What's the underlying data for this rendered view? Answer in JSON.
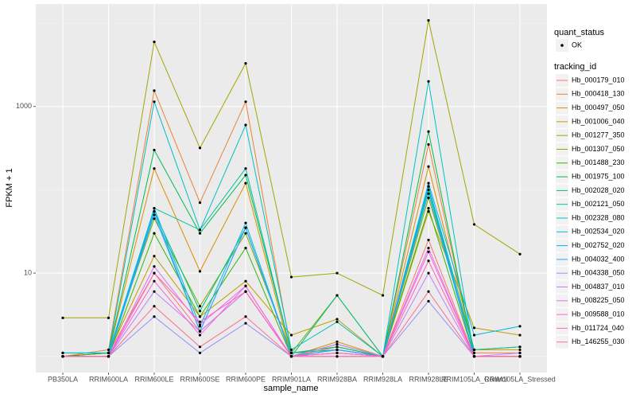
{
  "chart_data": {
    "type": "line",
    "x_label": "sample_name",
    "y_label": "FPKM + 1",
    "y_scale": "log",
    "grid": true,
    "legend_position": "right",
    "point_color": "#000000",
    "shape_legend_title": "quant_status",
    "shape_legend_items": [
      "OK"
    ],
    "color_legend_title": "tracking_id",
    "categories": [
      "PB350LA",
      "RRIM600LA",
      "RRIM600LE",
      "RRIM600SE",
      "RRIM600PE",
      "RRIM901LA",
      "RRIM928BA",
      "RRIM928LA",
      "RRIM928LE",
      "RRIM105LA_Control",
      "RRIM105LA_Stressed"
    ],
    "ylim": [
      0.64,
      17000
    ],
    "yticks": [
      10,
      1000
    ],
    "series": [
      {
        "name": "Hb_000179_010",
        "color": "#F8766D",
        "values": [
          1.0,
          1.1,
          10,
          2,
          6,
          1.0,
          1.3,
          1.0,
          25,
          1.0,
          1.0
        ]
      },
      {
        "name": "Hb_000418_130",
        "color": "#EA8331",
        "values": [
          1.0,
          1.2,
          1550,
          70,
          1140,
          1.1,
          1.2,
          1.0,
          350,
          1.1,
          1.1
        ]
      },
      {
        "name": "Hb_000497_050",
        "color": "#D89000",
        "values": [
          1.0,
          1.1,
          180,
          10.5,
          120,
          1.0,
          1.5,
          1.0,
          190,
          1.2,
          1.2
        ]
      },
      {
        "name": "Hb_001006_040",
        "color": "#C09B00",
        "values": [
          1.0,
          1.1,
          16,
          3,
          8,
          1.8,
          2.8,
          1.0,
          55,
          2.2,
          1.8
        ]
      },
      {
        "name": "Hb_001277_350",
        "color": "#A3A500",
        "values": [
          2.9,
          2.9,
          5960,
          318,
          3290,
          8.96,
          10,
          5.4,
          10800,
          38.4,
          16.9
        ]
      },
      {
        "name": "Hb_001307_050",
        "color": "#7CAE00",
        "values": [
          1.0,
          1.1,
          45,
          4,
          30,
          1.1,
          5.4,
          1.0,
          80,
          1.2,
          1.3
        ]
      },
      {
        "name": "Hb_001488_230",
        "color": "#39B600",
        "values": [
          1.0,
          1.0,
          30,
          3,
          20,
          1.0,
          1.2,
          1.0,
          60,
          1.0,
          1.0
        ]
      },
      {
        "name": "Hb_001975_100",
        "color": "#00BB4E",
        "values": [
          1.0,
          1.1,
          300,
          30,
          150,
          1.1,
          1.3,
          1.0,
          500,
          1.0,
          1.0
        ]
      },
      {
        "name": "Hb_002028_020",
        "color": "#00BF7D",
        "values": [
          1.0,
          1.0,
          55,
          3.5,
          35,
          1.0,
          5.4,
          1.0,
          100,
          1.0,
          1.0
        ]
      },
      {
        "name": "Hb_002121_050",
        "color": "#00C1A3",
        "values": [
          1.0,
          1.0,
          60,
          33,
          180,
          1.1,
          1.2,
          1.0,
          110,
          1.2,
          1.3
        ]
      },
      {
        "name": "Hb_002328_080",
        "color": "#00BFC4",
        "values": [
          1.1,
          1.1,
          1140,
          33,
          600,
          1.2,
          2.6,
          1.0,
          2000,
          1.0,
          1.0
        ]
      },
      {
        "name": "Hb_002534_020",
        "color": "#00BAE0",
        "values": [
          1.1,
          1.1,
          60,
          2.3,
          40,
          1.0,
          1.4,
          1.0,
          120,
          1.8,
          2.3
        ]
      },
      {
        "name": "Hb_002752_020",
        "color": "#00B0F6",
        "values": [
          1.0,
          1.0,
          55,
          2,
          35,
          1.0,
          1.2,
          1.0,
          110,
          1.0,
          1.0
        ]
      },
      {
        "name": "Hb_004032_400",
        "color": "#35A2FF",
        "values": [
          1.0,
          1.0,
          50,
          2,
          35,
          1.0,
          1.2,
          1.0,
          90,
          1.0,
          1.0
        ]
      },
      {
        "name": "Hb_004338_050",
        "color": "#9590FF",
        "values": [
          1.0,
          1.0,
          3,
          1.1,
          2.5,
          1.0,
          1.1,
          1.0,
          4.6,
          1.0,
          1.0
        ]
      },
      {
        "name": "Hb_004837_010",
        "color": "#C77CFF",
        "values": [
          1.0,
          1.0,
          6,
          2,
          6,
          1.0,
          1.4,
          1.0,
          10,
          1.0,
          1.1
        ]
      },
      {
        "name": "Hb_008225_050",
        "color": "#E76BF3",
        "values": [
          1.0,
          1.0,
          12,
          2.4,
          7,
          1.0,
          1.1,
          1.0,
          20,
          1.0,
          1.0
        ]
      },
      {
        "name": "Hb_009588_010",
        "color": "#FA62DB",
        "values": [
          1.0,
          1.0,
          8,
          1.8,
          7,
          1.0,
          1.0,
          1.0,
          18,
          1.0,
          1.0
        ]
      },
      {
        "name": "Hb_011724_040",
        "color": "#FF62BC",
        "values": [
          1.0,
          1.0,
          10,
          2.6,
          6,
          1.0,
          1.1,
          1.0,
          14,
          1.0,
          1.0
        ]
      },
      {
        "name": "Hb_146255_030",
        "color": "#FF6C91",
        "values": [
          1.0,
          1.0,
          4,
          1.3,
          3,
          1.0,
          1.0,
          1.0,
          6,
          1.0,
          1.0
        ]
      }
    ]
  }
}
